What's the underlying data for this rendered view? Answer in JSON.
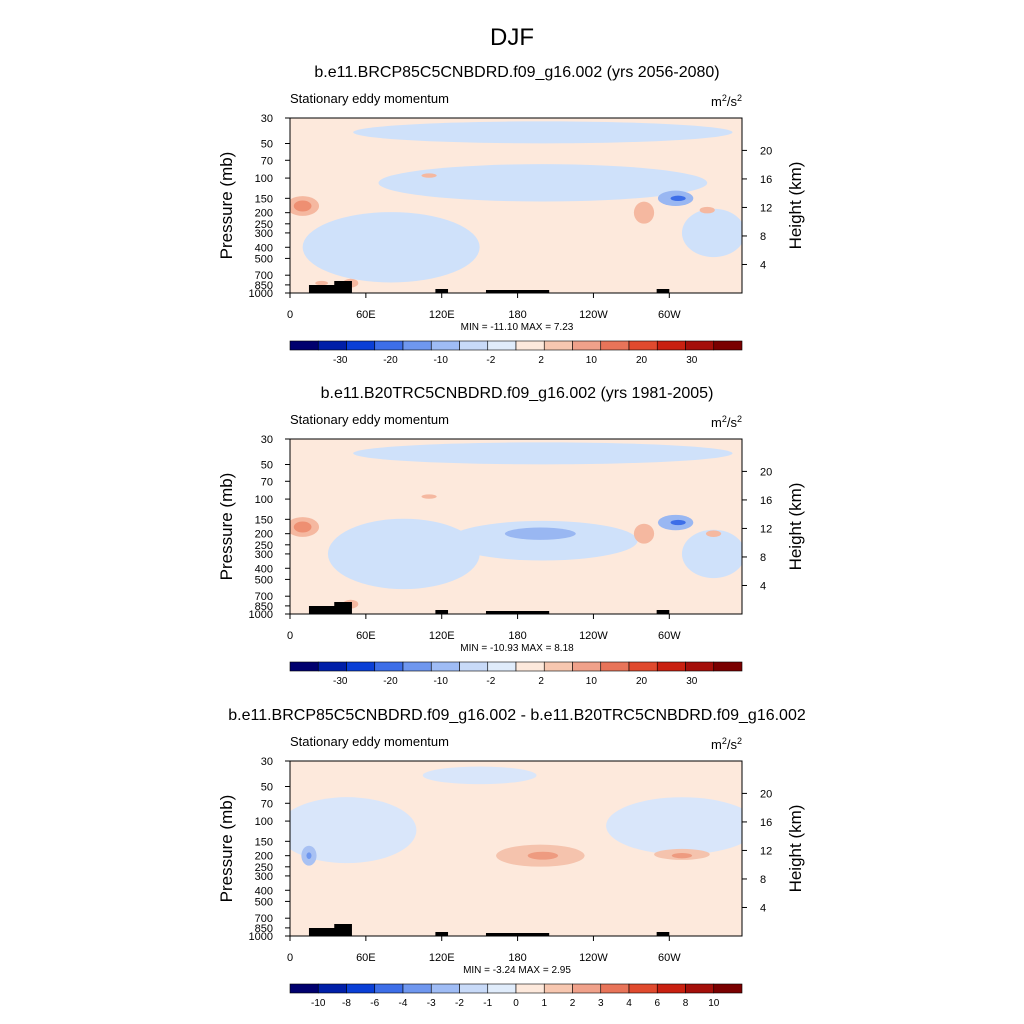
{
  "figure_title": "DJF",
  "colors": {
    "extreme_neg": "#00006e",
    "extreme_pos": "#7a0000"
  },
  "chart_data": [
    {
      "type": "contour",
      "title": "b.e11.BRCP85C5CNBDRD.f09_g16.002 (yrs 2056-2080)",
      "subtitle": "Stationary eddy momentum",
      "units_base": "m",
      "units_sup1": "2",
      "units_mid": "/s",
      "units_sup2": "2",
      "ylabel": "Pressure (mb)",
      "y2label": "Height (km)",
      "pressure_ticks": [
        30,
        50,
        70,
        100,
        150,
        200,
        250,
        300,
        400,
        500,
        700,
        850,
        1000
      ],
      "height_ticks": [
        20,
        16,
        12,
        8,
        4
      ],
      "x_ticks": [
        {
          "lon": 0,
          "label": "0"
        },
        {
          "lon": 60,
          "label": "60E"
        },
        {
          "lon": 120,
          "label": "120E"
        },
        {
          "lon": 180,
          "label": "180"
        },
        {
          "lon": 240,
          "label": "120W"
        },
        {
          "lon": 300,
          "label": "60W"
        }
      ],
      "x_range": [
        0,
        357.5
      ],
      "stats": "MIN = -11.10  MAX =   7.23",
      "colorbar_levels": [
        "-30",
        "-20",
        "-10",
        "-2",
        "2",
        "10",
        "20",
        "30"
      ],
      "colorbar_colors": [
        "#00006e",
        "#001fa8",
        "#0a3fd6",
        "#3d6ee8",
        "#6f97ef",
        "#9fbcf5",
        "#c8daf8",
        "#e0ecfb",
        "#fde9dc",
        "#f7c7b0",
        "#f0a18a",
        "#e87459",
        "#e04a2e",
        "#c92010",
        "#a40f0a",
        "#7a0000"
      ],
      "background_color": "#fde9dc",
      "regions": [
        {
          "kind": "ellipse",
          "lon": 200,
          "p": 110,
          "rlon": 130,
          "rp": 0.85,
          "level": -2,
          "color": "#cfe1fa"
        },
        {
          "kind": "ellipse",
          "lon": 80,
          "p": 400,
          "rlon": 70,
          "rp": 1.6,
          "level": -2,
          "color": "#cfe1fa"
        },
        {
          "kind": "ellipse",
          "lon": 200,
          "p": 40,
          "rlon": 150,
          "rp": 0.5,
          "level": -2,
          "color": "#cfe1fa"
        },
        {
          "kind": "ellipse",
          "lon": 335,
          "p": 300,
          "rlon": 25,
          "rp": 1.1,
          "level": -2,
          "color": "#cfe1fa"
        },
        {
          "kind": "ellipse",
          "lon": 305,
          "p": 150,
          "rlon": 14,
          "rp": 0.35,
          "level": -4,
          "color": "#99b7f2"
        },
        {
          "kind": "ellipse",
          "lon": 307,
          "p": 150,
          "rlon": 6,
          "rp": 0.12,
          "level": -8,
          "color": "#3d6ee8"
        },
        {
          "kind": "ellipse",
          "lon": 10,
          "p": 175,
          "rlon": 13,
          "rp": 0.45,
          "level": 2,
          "color": "#f5b8a0"
        },
        {
          "kind": "ellipse",
          "lon": 10,
          "p": 175,
          "rlon": 7,
          "rp": 0.25,
          "level": 4,
          "color": "#ee8f72"
        },
        {
          "kind": "ellipse",
          "lon": 280,
          "p": 200,
          "rlon": 8,
          "rp": 0.5,
          "level": 2,
          "color": "#f5b8a0"
        },
        {
          "kind": "ellipse",
          "lon": 330,
          "p": 190,
          "rlon": 6,
          "rp": 0.15,
          "level": 2,
          "color": "#f5b8a0"
        },
        {
          "kind": "ellipse",
          "lon": 110,
          "p": 95,
          "rlon": 6,
          "rp": 0.1,
          "level": 2,
          "color": "#f5b8a0"
        },
        {
          "kind": "ellipse",
          "lon": 48,
          "p": 820,
          "rlon": 6,
          "rp": 0.2,
          "level": 2,
          "color": "#f5b8a0"
        },
        {
          "kind": "ellipse",
          "lon": 25,
          "p": 820,
          "rlon": 5,
          "rp": 0.1,
          "level": 2,
          "color": "#f5b8a0"
        }
      ]
    },
    {
      "type": "contour",
      "title": "b.e11.B20TRC5CNBDRD.f09_g16.002 (yrs 1981-2005)",
      "subtitle": "Stationary eddy momentum",
      "units_base": "m",
      "units_sup1": "2",
      "units_mid": "/s",
      "units_sup2": "2",
      "ylabel": "Pressure (mb)",
      "y2label": "Height (km)",
      "pressure_ticks": [
        30,
        50,
        70,
        100,
        150,
        200,
        250,
        300,
        400,
        500,
        700,
        850,
        1000
      ],
      "height_ticks": [
        20,
        16,
        12,
        8,
        4
      ],
      "x_ticks": [
        {
          "lon": 0,
          "label": "0"
        },
        {
          "lon": 60,
          "label": "60E"
        },
        {
          "lon": 120,
          "label": "120E"
        },
        {
          "lon": 180,
          "label": "180"
        },
        {
          "lon": 240,
          "label": "120W"
        },
        {
          "lon": 300,
          "label": "60W"
        }
      ],
      "x_range": [
        0,
        357.5
      ],
      "stats": "MIN = -10.93  MAX =   8.18",
      "colorbar_levels": [
        "-30",
        "-20",
        "-10",
        "-2",
        "2",
        "10",
        "20",
        "30"
      ],
      "colorbar_colors": [
        "#00006e",
        "#001fa8",
        "#0a3fd6",
        "#3d6ee8",
        "#6f97ef",
        "#9fbcf5",
        "#c8daf8",
        "#e0ecfb",
        "#fde9dc",
        "#f7c7b0",
        "#f0a18a",
        "#e87459",
        "#e04a2e",
        "#c92010",
        "#a40f0a",
        "#7a0000"
      ],
      "background_color": "#fde9dc",
      "regions": [
        {
          "kind": "ellipse",
          "lon": 200,
          "p": 230,
          "rlon": 75,
          "rp": 0.9,
          "level": -2,
          "color": "#cfe1fa"
        },
        {
          "kind": "ellipse",
          "lon": 90,
          "p": 300,
          "rlon": 60,
          "rp": 1.6,
          "level": -2,
          "color": "#cfe1fa"
        },
        {
          "kind": "ellipse",
          "lon": 200,
          "p": 40,
          "rlon": 150,
          "rp": 0.5,
          "level": -2,
          "color": "#cfe1fa"
        },
        {
          "kind": "ellipse",
          "lon": 335,
          "p": 300,
          "rlon": 25,
          "rp": 1.1,
          "level": -2,
          "color": "#cfe1fa"
        },
        {
          "kind": "ellipse",
          "lon": 198,
          "p": 200,
          "rlon": 28,
          "rp": 0.28,
          "level": -4,
          "color": "#99b7f2"
        },
        {
          "kind": "ellipse",
          "lon": 305,
          "p": 160,
          "rlon": 14,
          "rp": 0.35,
          "level": -4,
          "color": "#99b7f2"
        },
        {
          "kind": "ellipse",
          "lon": 307,
          "p": 160,
          "rlon": 6,
          "rp": 0.12,
          "level": -8,
          "color": "#3d6ee8"
        },
        {
          "kind": "ellipse",
          "lon": 10,
          "p": 175,
          "rlon": 13,
          "rp": 0.45,
          "level": 2,
          "color": "#f5b8a0"
        },
        {
          "kind": "ellipse",
          "lon": 10,
          "p": 175,
          "rlon": 7,
          "rp": 0.25,
          "level": 4,
          "color": "#ee8f72"
        },
        {
          "kind": "ellipse",
          "lon": 280,
          "p": 200,
          "rlon": 8,
          "rp": 0.45,
          "level": 2,
          "color": "#f5b8a0"
        },
        {
          "kind": "ellipse",
          "lon": 335,
          "p": 200,
          "rlon": 6,
          "rp": 0.15,
          "level": 2,
          "color": "#f5b8a0"
        },
        {
          "kind": "ellipse",
          "lon": 110,
          "p": 95,
          "rlon": 6,
          "rp": 0.1,
          "level": 2,
          "color": "#f5b8a0"
        },
        {
          "kind": "ellipse",
          "lon": 48,
          "p": 820,
          "rlon": 6,
          "rp": 0.2,
          "level": 2,
          "color": "#f5b8a0"
        }
      ]
    },
    {
      "type": "contour",
      "title": "b.e11.BRCP85C5CNBDRD.f09_g16.002 - b.e11.B20TRC5CNBDRD.f09_g16.002",
      "subtitle": "Stationary eddy momentum",
      "units_base": "m",
      "units_sup1": "2",
      "units_mid": "/s",
      "units_sup2": "2",
      "ylabel": "Pressure (mb)",
      "y2label": "Height (km)",
      "pressure_ticks": [
        30,
        50,
        70,
        100,
        150,
        200,
        250,
        300,
        400,
        500,
        700,
        850,
        1000
      ],
      "height_ticks": [
        20,
        16,
        12,
        8,
        4
      ],
      "x_ticks": [
        {
          "lon": 0,
          "label": "0"
        },
        {
          "lon": 60,
          "label": "60E"
        },
        {
          "lon": 120,
          "label": "120E"
        },
        {
          "lon": 180,
          "label": "180"
        },
        {
          "lon": 240,
          "label": "120W"
        },
        {
          "lon": 300,
          "label": "60W"
        }
      ],
      "x_range": [
        0,
        357.5
      ],
      "stats": "MIN = -3.24  MAX =   2.95",
      "colorbar_levels": [
        "-10",
        "-8",
        "-6",
        "-4",
        "-3",
        "-2",
        "-1",
        "0",
        "1",
        "2",
        "3",
        "4",
        "6",
        "8",
        "10"
      ],
      "colorbar_colors": [
        "#00006e",
        "#001fa8",
        "#0a3fd6",
        "#3d6ee8",
        "#6f97ef",
        "#9fbcf5",
        "#c8daf8",
        "#e0ecfb",
        "#fde9dc",
        "#f7c7b0",
        "#f0a18a",
        "#e87459",
        "#e04a2e",
        "#c92010",
        "#a40f0a",
        "#7a0000"
      ],
      "background_color": "#fde9dc",
      "regions": [
        {
          "kind": "ellipse",
          "lon": 45,
          "p": 120,
          "rlon": 55,
          "rp": 1.5,
          "level": -1,
          "color": "#d9e6fa"
        },
        {
          "kind": "ellipse",
          "lon": 310,
          "p": 110,
          "rlon": 60,
          "rp": 1.3,
          "level": -1,
          "color": "#d9e6fa"
        },
        {
          "kind": "ellipse",
          "lon": 150,
          "p": 40,
          "rlon": 45,
          "rp": 0.4,
          "level": -1,
          "color": "#d9e6fa"
        },
        {
          "kind": "ellipse",
          "lon": 15,
          "p": 200,
          "rlon": 6,
          "rp": 0.45,
          "level": -2,
          "color": "#a8c1f3"
        },
        {
          "kind": "ellipse",
          "lon": 15,
          "p": 200,
          "rlon": 2,
          "rp": 0.15,
          "level": -3,
          "color": "#6f97ef"
        },
        {
          "kind": "ellipse",
          "lon": 198,
          "p": 200,
          "rlon": 35,
          "rp": 0.5,
          "level": 1,
          "color": "#f5c3ad"
        },
        {
          "kind": "ellipse",
          "lon": 200,
          "p": 200,
          "rlon": 12,
          "rp": 0.18,
          "level": 2,
          "color": "#ee9b80"
        },
        {
          "kind": "ellipse",
          "lon": 310,
          "p": 195,
          "rlon": 22,
          "rp": 0.25,
          "level": 1,
          "color": "#f5c3ad"
        },
        {
          "kind": "ellipse",
          "lon": 310,
          "p": 200,
          "rlon": 8,
          "rp": 0.12,
          "level": 2,
          "color": "#ee9b80"
        }
      ]
    }
  ]
}
